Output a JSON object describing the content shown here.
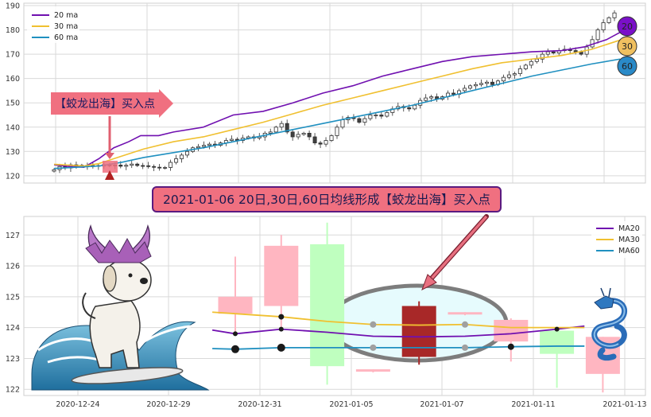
{
  "chart_data": [
    {
      "type": "line",
      "title": "",
      "xlabel": "",
      "ylabel": "",
      "ylim": [
        117,
        191
      ],
      "yticks": [
        120,
        130,
        140,
        150,
        160,
        170,
        180,
        190
      ],
      "grid": true,
      "legend_placement": "top-left",
      "x_index_range": [
        0,
        101
      ],
      "series": [
        {
          "name": "20 ma",
          "color": "#7010b0",
          "points": [
            [
              0,
              124.5
            ],
            [
              10,
              123.8
            ],
            [
              20,
              123.5
            ],
            [
              30,
              127
            ],
            [
              40,
              131.5
            ],
            [
              50,
              134
            ],
            [
              58,
              136.5
            ],
            [
              70,
              136.5
            ],
            [
              80,
              138
            ],
            [
              100,
              140
            ],
            [
              120,
              145
            ],
            [
              140,
              146.5
            ],
            [
              160,
              150
            ],
            [
              180,
              154
            ],
            [
              200,
              157
            ],
            [
              220,
              161
            ],
            [
              240,
              164
            ],
            [
              260,
              167
            ],
            [
              280,
              169
            ],
            [
              300,
              170
            ],
            [
              320,
              171
            ],
            [
              340,
              171.5
            ],
            [
              355,
              173
            ],
            [
              370,
              176
            ],
            [
              379,
              179
            ]
          ]
        },
        {
          "name": "30 ma",
          "color": "#f0c030",
          "points": [
            [
              0,
              124.7
            ],
            [
              20,
              124
            ],
            [
              30,
              125
            ],
            [
              45,
              128
            ],
            [
              60,
              131
            ],
            [
              80,
              134
            ],
            [
              100,
              136
            ],
            [
              120,
              139
            ],
            [
              140,
              142
            ],
            [
              160,
              145.5
            ],
            [
              180,
              149
            ],
            [
              200,
              152
            ],
            [
              220,
              155
            ],
            [
              240,
              158
            ],
            [
              260,
              161
            ],
            [
              280,
              164
            ],
            [
              300,
              166.5
            ],
            [
              320,
              168
            ],
            [
              340,
              169.5
            ],
            [
              360,
              172
            ],
            [
              380,
              176
            ]
          ]
        },
        {
          "name": "60 ma",
          "color": "#2090c0",
          "points": [
            [
              0,
              123
            ],
            [
              30,
              124
            ],
            [
              45,
              125.5
            ],
            [
              60,
              127.5
            ],
            [
              80,
              129.5
            ],
            [
              100,
              131.5
            ],
            [
              120,
              134
            ],
            [
              140,
              136.5
            ],
            [
              160,
              139
            ],
            [
              180,
              141.5
            ],
            [
              200,
              144
            ],
            [
              220,
              146.5
            ],
            [
              240,
              149
            ],
            [
              260,
              152
            ],
            [
              280,
              155
            ],
            [
              300,
              158
            ],
            [
              320,
              161
            ],
            [
              340,
              163.5
            ],
            [
              360,
              166
            ],
            [
              379,
              168
            ]
          ]
        }
      ],
      "candles": {
        "up_color": "#ffffff",
        "down_color": "#404040",
        "values": [
          122.5,
          123.8,
          123.2,
          124.5,
          124,
          124.3,
          123.8,
          124.2,
          124,
          124.6,
          124.1,
          124.4,
          123.9,
          124.3,
          124.8,
          124.2,
          124.1,
          123.8,
          123.5,
          123.2,
          123.4,
          125.5,
          127,
          128.5,
          130,
          131.5,
          132,
          132.5,
          133,
          132.5,
          133.5,
          134.5,
          135,
          134.5,
          135.5,
          136,
          135.5,
          136,
          137.5,
          138,
          140,
          141.5,
          138,
          136,
          137,
          137.5,
          136,
          133.5,
          133,
          134.5,
          136.5,
          140,
          143,
          144,
          143.5,
          142,
          143.5,
          145,
          145,
          144.5,
          146,
          147.5,
          148.5,
          148,
          147.5,
          149,
          151,
          152,
          152.5,
          151.5,
          152.5,
          154,
          153.5,
          155,
          156,
          157,
          157.5,
          158,
          158.5,
          157.5,
          159,
          160.5,
          161.5,
          162,
          164,
          165.5,
          167,
          168,
          170,
          171,
          170.5,
          171.5,
          172,
          171.5,
          171,
          170,
          173,
          176,
          180,
          183,
          185,
          187
        ]
      },
      "ma_labels": [
        "20",
        "30",
        "60"
      ],
      "annotation": {
        "text": "【蛟龙出海】买入点",
        "color": "#f07080"
      }
    },
    {
      "type": "line",
      "title": "",
      "xlabel": "",
      "ylabel": "",
      "ylim": [
        121.8,
        127.6
      ],
      "yticks": [
        122,
        123,
        124,
        125,
        126,
        127
      ],
      "xticks": [
        "2020-12-24",
        "2020-12-29",
        "2020-12-31",
        "2021-01-05",
        "2021-01-07",
        "2021-01-11",
        "2021-01-13"
      ],
      "grid": true,
      "legend_placement": "top-right",
      "series": [
        {
          "name": "MA20",
          "color": "#7010b0",
          "points": [
            [
              -0.5,
              123.92
            ],
            [
              0,
              123.8
            ],
            [
              1,
              123.95
            ],
            [
              2,
              123.85
            ],
            [
              3,
              123.72
            ],
            [
              4,
              123.7
            ],
            [
              5,
              123.72
            ],
            [
              6,
              123.8
            ],
            [
              7,
              123.95
            ],
            [
              7.6,
              124.05
            ]
          ]
        },
        {
          "name": "MA30",
          "color": "#f0c030",
          "points": [
            [
              -0.5,
              124.5
            ],
            [
              0,
              124.45
            ],
            [
              1,
              124.35
            ],
            [
              2,
              124.2
            ],
            [
              3,
              124.1
            ],
            [
              4,
              124.08
            ],
            [
              5,
              124.1
            ],
            [
              6,
              124.0
            ],
            [
              7,
              124.0
            ],
            [
              7.6,
              124.0
            ]
          ]
        },
        {
          "name": "MA60",
          "color": "#2090c0",
          "points": [
            [
              -0.5,
              123.32
            ],
            [
              0,
              123.3
            ],
            [
              1,
              123.35
            ],
            [
              2,
              123.35
            ],
            [
              3,
              123.35
            ],
            [
              4,
              123.35
            ],
            [
              5,
              123.35
            ],
            [
              6,
              123.38
            ],
            [
              7,
              123.4
            ],
            [
              7.6,
              123.4
            ]
          ]
        }
      ],
      "candles": {
        "up_color": "#bfffbf",
        "down_color": "#ffb6c1",
        "values": [
          {
            "o": 124.45,
            "h": 126.3,
            "l": 123.85,
            "c": 125.0,
            "color": "#ffb6c1"
          },
          {
            "o": 124.7,
            "h": 127.0,
            "l": 123.9,
            "c": 126.65,
            "color": "#ffb6c1"
          },
          {
            "o": 126.7,
            "h": 127.4,
            "l": 122.15,
            "c": 122.75,
            "color": "#bfffbf"
          },
          {
            "o": 122.65,
            "h": 122.65,
            "l": 122.55,
            "c": 122.6,
            "color": "#ffb6c1"
          },
          {
            "o": 123.05,
            "h": 124.85,
            "l": 122.8,
            "c": 124.7,
            "color": "#a82828"
          },
          {
            "o": 124.45,
            "h": 124.5,
            "l": 124.4,
            "c": 124.5,
            "color": "#ffb6c1"
          },
          {
            "o": 123.55,
            "h": 124.3,
            "l": 122.9,
            "c": 124.25,
            "color": "#ffb6c1"
          },
          {
            "o": 123.15,
            "h": 124.0,
            "l": 122.05,
            "c": 123.9,
            "color": "#bfffbf"
          },
          {
            "o": 122.5,
            "h": 123.7,
            "l": 121.9,
            "c": 123.7,
            "color": "#ffb6c1"
          }
        ]
      },
      "annotation": {
        "text": "2021-01-06 20日,30日,60日均线形成【蛟龙出海】买入点"
      }
    }
  ]
}
